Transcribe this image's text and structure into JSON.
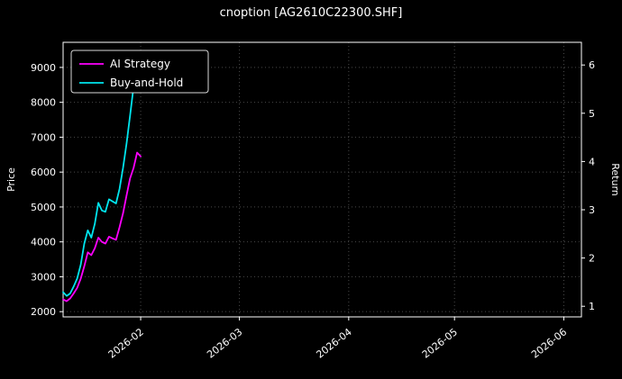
{
  "title": "cnoption [AG2610C22300.SHF]",
  "colors": {
    "background": "#000000",
    "text": "#ffffff",
    "spine": "#ffffff",
    "grid": "#4a4a4a",
    "ai_strategy": "#ff00ff",
    "buy_and_hold": "#00e5ee"
  },
  "chart_data": {
    "type": "line",
    "title": "cnoption [AG2610C22300.SHF]",
    "ylabel_left": "Price",
    "ylabel_right": "Return",
    "xlabel": "",
    "grid": "dotted",
    "legend_position": "upper left",
    "xlim": [
      "2026-01-10",
      "2026-06-06"
    ],
    "ylim_left": [
      1850,
      9720
    ],
    "ylim_right": [
      0.78,
      6.47
    ],
    "x_ticks": [
      "2026-02",
      "2026-03",
      "2026-04",
      "2026-05",
      "2026-06"
    ],
    "y_ticks_left": [
      2000,
      3000,
      4000,
      5000,
      6000,
      7000,
      8000,
      9000
    ],
    "y_ticks_right": [
      1,
      2,
      3,
      4,
      5,
      6
    ],
    "series": [
      {
        "name": "AI Strategy",
        "color": "#ff00ff",
        "axis": "left",
        "x": [
          "2026-01-10",
          "2026-01-11",
          "2026-01-12",
          "2026-01-13",
          "2026-01-14",
          "2026-01-15",
          "2026-01-16",
          "2026-01-17",
          "2026-01-18",
          "2026-01-19",
          "2026-01-20",
          "2026-01-21",
          "2026-01-22",
          "2026-01-23",
          "2026-01-24",
          "2026-01-25",
          "2026-01-26",
          "2026-01-27",
          "2026-01-28",
          "2026-01-29",
          "2026-01-30",
          "2026-01-31",
          "2026-02-01"
        ],
        "y": [
          2350,
          2300,
          2380,
          2520,
          2680,
          2950,
          3300,
          3700,
          3620,
          3820,
          4120,
          4000,
          3950,
          4150,
          4100,
          4060,
          4420,
          4820,
          5330,
          5820,
          6120,
          6560,
          6450
        ]
      },
      {
        "name": "Buy-and-Hold",
        "color": "#00e5ee",
        "axis": "left",
        "x": [
          "2026-01-10",
          "2026-01-11",
          "2026-01-12",
          "2026-01-13",
          "2026-01-14",
          "2026-01-15",
          "2026-01-16",
          "2026-01-17",
          "2026-01-18",
          "2026-01-19",
          "2026-01-20",
          "2026-01-21",
          "2026-01-22",
          "2026-01-23",
          "2026-01-24",
          "2026-01-25",
          "2026-01-26",
          "2026-01-27",
          "2026-01-28",
          "2026-01-29",
          "2026-01-30",
          "2026-01-31"
        ],
        "y": [
          2560,
          2450,
          2520,
          2720,
          2950,
          3350,
          3950,
          4330,
          4120,
          4520,
          5120,
          4900,
          4860,
          5220,
          5160,
          5100,
          5520,
          6120,
          6820,
          7620,
          8450,
          9200
        ]
      }
    ]
  }
}
